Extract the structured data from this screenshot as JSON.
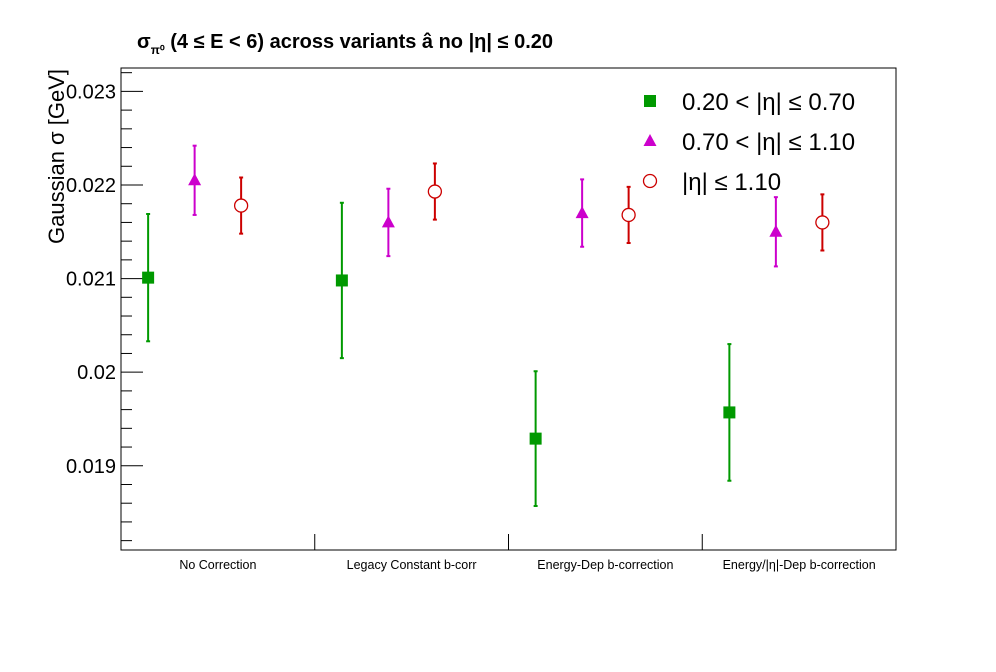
{
  "chart_data": {
    "type": "scatter",
    "title_parts": [
      "σ",
      "π⁰",
      " (4 ≤ E < 6) across variants  â  no |η| ≤ 0.20"
    ],
    "title": "σπ⁰ (4 ≤ E < 6) across variants  â  no |η| ≤ 0.20",
    "ylabel": "Gaussian σ  [GeV]",
    "xlabel": "",
    "categories": [
      "No Correction",
      "Legacy Constant b-corr",
      "Energy-Dep b-correction",
      "Energy/|η|-Dep b-correction"
    ],
    "ylim": [
      0.0181,
      0.02325
    ],
    "yticks": [
      0.019,
      0.02,
      0.021,
      0.022,
      0.023
    ],
    "ytick_labels": [
      "0.019",
      "0.02",
      "0.021",
      "0.022",
      "0.023"
    ],
    "legend_position": "top-right",
    "series": [
      {
        "name": "0.20 < |η| ≤ 0.70",
        "color": "#009900",
        "marker": "filled-square",
        "values": [
          0.02101,
          0.02098,
          0.01929,
          0.01957
        ],
        "errors": [
          0.00068,
          0.00083,
          0.00072,
          0.00073
        ]
      },
      {
        "name": "0.70 < |η| ≤ 1.10",
        "color": "#cc00cc",
        "marker": "filled-triangle",
        "values": [
          0.02205,
          0.0216,
          0.0217,
          0.0215
        ],
        "errors": [
          0.00037,
          0.00036,
          0.00036,
          0.00037
        ]
      },
      {
        "name": "|η| ≤ 1.10",
        "color": "#cc0000",
        "marker": "open-circle",
        "values": [
          0.02178,
          0.02193,
          0.02168,
          0.0216
        ],
        "errors": [
          0.0003,
          0.0003,
          0.0003,
          0.0003
        ]
      }
    ]
  }
}
